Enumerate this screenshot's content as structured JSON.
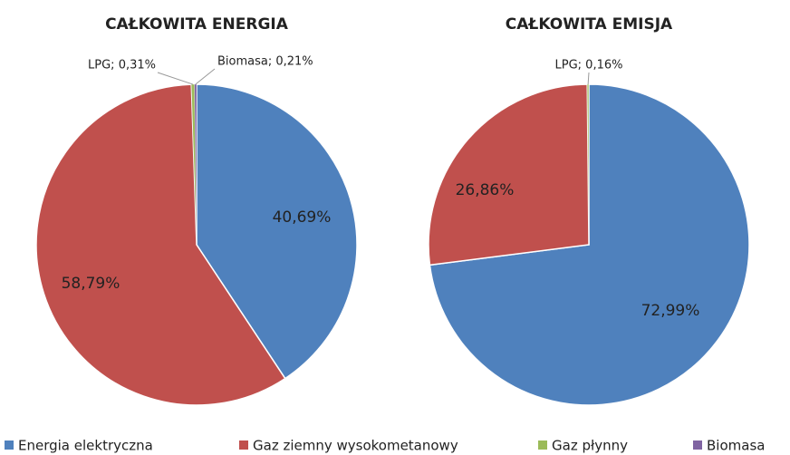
{
  "chart_data": [
    {
      "type": "pie",
      "title": "CAŁKOWITA ENERGIA",
      "categories": [
        "Energia elektryczna",
        "Gaz ziemny wysokometanowy",
        "Gaz płynny",
        "Biomasa"
      ],
      "colors": [
        "#4f81bd",
        "#c0504d",
        "#9bbb59",
        "#8064a2"
      ],
      "values": [
        40.69,
        58.79,
        0.31,
        0.21
      ],
      "value_labels": [
        "40,69%",
        "58,79%",
        "LPG; 0,31%",
        "Biomasa; 0,21%"
      ]
    },
    {
      "type": "pie",
      "title": "CAŁKOWITA EMISJA",
      "categories": [
        "Energia elektryczna",
        "Gaz ziemny wysokometanowy",
        "Gaz płynny",
        "Biomasa"
      ],
      "colors": [
        "#4f81bd",
        "#c0504d",
        "#9bbb59",
        "#8064a2"
      ],
      "values": [
        72.99,
        26.86,
        0.16,
        0
      ],
      "value_labels": [
        "72,99%",
        "26,86%",
        "LPG; 0,16%",
        null
      ]
    }
  ]
}
